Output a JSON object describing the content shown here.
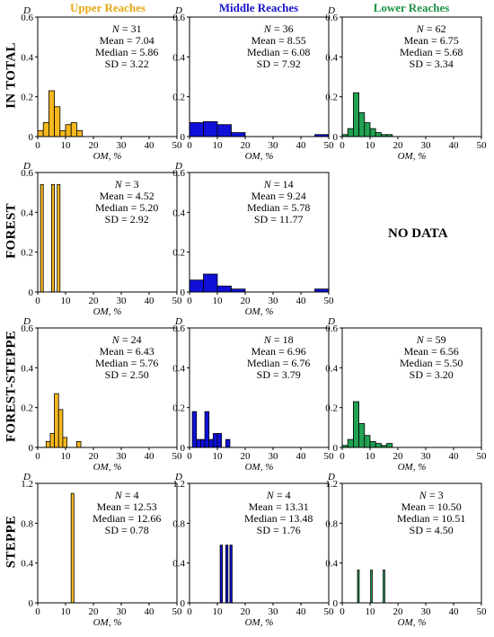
{
  "figure": {
    "col_titles": [
      {
        "text": "Upper Reaches",
        "color": "#E6A817"
      },
      {
        "text": "Middle Reaches",
        "color": "#1515C8"
      },
      {
        "text": "Lower Reaches",
        "color": "#1E9148"
      }
    ],
    "row_titles": [
      "IN TOTAL",
      "FOREST",
      "FOREST-STEPPE",
      "STEPPE"
    ],
    "no_data_label": "NO DATA",
    "colors": {
      "upper": "#F5B81F",
      "middle": "#1010D8",
      "lower": "#21A152",
      "outline": "#000000"
    }
  },
  "chart_data": [
    {
      "id": "total-upper",
      "row": 0,
      "col": 0,
      "type": "bar",
      "series": "upper",
      "xlabel": "OM, %",
      "ylabel": "D",
      "xlim": [
        0,
        50
      ],
      "ylim": [
        0,
        0.6
      ],
      "xticks": [
        0,
        10,
        20,
        30,
        40,
        50
      ],
      "yticks": [
        0,
        0.2,
        0.4,
        0.6
      ],
      "ytick_labels": [
        "0",
        "0.2",
        "0.4",
        "0.6"
      ],
      "bin_width": 2,
      "bins_start": [
        0,
        2,
        4,
        6,
        8,
        10,
        12,
        14
      ],
      "values": [
        0.03,
        0.07,
        0.23,
        0.15,
        0.03,
        0.06,
        0.07,
        0.03
      ],
      "stats": {
        "n": "N = 31",
        "mean": "Mean = 7.04",
        "median": "Median = 5.86",
        "sd": "SD = 3.22"
      }
    },
    {
      "id": "total-middle",
      "row": 0,
      "col": 1,
      "type": "bar",
      "series": "middle",
      "xlabel": "OM, %",
      "ylabel": "D",
      "xlim": [
        0,
        50
      ],
      "ylim": [
        0,
        0.6
      ],
      "xticks": [
        0,
        10,
        20,
        30,
        40,
        50
      ],
      "yticks": [
        0,
        0.2,
        0.4,
        0.6
      ],
      "ytick_labels": [
        "0",
        "0.2",
        "0.4",
        "0.6"
      ],
      "bin_width": 5,
      "bins_start": [
        0,
        5,
        10,
        15,
        20,
        25,
        30,
        35,
        40,
        45
      ],
      "values": [
        0.07,
        0.075,
        0.06,
        0.02,
        0.0,
        0.0,
        0.0,
        0.0,
        0.0,
        0.01
      ],
      "stats": {
        "n": "N = 36",
        "mean": "Mean = 8.55",
        "median": "Median = 6.08",
        "sd": "SD = 7.92"
      }
    },
    {
      "id": "total-lower",
      "row": 0,
      "col": 2,
      "type": "bar",
      "series": "lower",
      "xlabel": "OM, %",
      "ylabel": "D",
      "xlim": [
        0,
        50
      ],
      "ylim": [
        0,
        0.6
      ],
      "xticks": [
        0,
        10,
        20,
        30,
        40,
        50
      ],
      "yticks": [
        0,
        0.2,
        0.4,
        0.6
      ],
      "ytick_labels": [
        "0",
        "0.2",
        "0.4",
        "0.6"
      ],
      "bin_width": 2,
      "bins_start": [
        0,
        2,
        4,
        6,
        8,
        10,
        12,
        14,
        16
      ],
      "values": [
        0.01,
        0.04,
        0.22,
        0.12,
        0.07,
        0.04,
        0.02,
        0.01,
        0.01
      ],
      "stats": {
        "n": "N = 62",
        "mean": "Mean = 6.75",
        "median": "Median = 5.68",
        "sd": "SD = 3.34"
      }
    },
    {
      "id": "forest-upper",
      "row": 1,
      "col": 0,
      "type": "bar",
      "series": "upper",
      "xlabel": "OM, %",
      "ylabel": "D",
      "xlim": [
        0,
        50
      ],
      "ylim": [
        0,
        0.6
      ],
      "xticks": [
        0,
        10,
        20,
        30,
        40,
        50
      ],
      "yticks": [
        0,
        0.2,
        0.4,
        0.6
      ],
      "ytick_labels": [
        "0",
        "0.2",
        "0.4",
        "0.6"
      ],
      "bin_width": 1,
      "bins_start": [
        1,
        5,
        7
      ],
      "values": [
        0.54,
        0.54,
        0.54
      ],
      "stats": {
        "n": "N = 3",
        "mean": "Mean = 4.52",
        "median": "Median = 5.20",
        "sd": "SD = 2.92"
      }
    },
    {
      "id": "forest-middle",
      "row": 1,
      "col": 1,
      "type": "bar",
      "series": "middle",
      "xlabel": "OM, %",
      "ylabel": "D",
      "xlim": [
        0,
        50
      ],
      "ylim": [
        0,
        0.6
      ],
      "xticks": [
        0,
        10,
        20,
        30,
        40,
        50
      ],
      "yticks": [
        0,
        0.2,
        0.4,
        0.6
      ],
      "ytick_labels": [
        "0",
        "0.2",
        "0.4",
        "0.6"
      ],
      "bin_width": 5,
      "bins_start": [
        0,
        5,
        10,
        15,
        20,
        25,
        30,
        35,
        40,
        45
      ],
      "values": [
        0.06,
        0.09,
        0.03,
        0.015,
        0.0,
        0.0,
        0.0,
        0.0,
        0.0,
        0.015
      ],
      "stats": {
        "n": "N = 14",
        "mean": "Mean = 9.24",
        "median": "Median = 5.78",
        "sd": "SD = 11.77"
      }
    },
    {
      "id": "steppeF-upper",
      "row": 2,
      "col": 0,
      "type": "bar",
      "series": "upper",
      "xlabel": "OM, %",
      "ylabel": "D",
      "xlim": [
        0,
        50
      ],
      "ylim": [
        0,
        0.6
      ],
      "xticks": [
        0,
        10,
        20,
        30,
        40,
        50
      ],
      "yticks": [
        0,
        0.2,
        0.4,
        0.6
      ],
      "ytick_labels": [
        "0",
        "0.2",
        "0.4",
        "0.6"
      ],
      "bin_width": 1.5,
      "bins_start": [
        3,
        4.5,
        6,
        7.5,
        9,
        14
      ],
      "values": [
        0.03,
        0.07,
        0.27,
        0.19,
        0.05,
        0.03
      ],
      "stats": {
        "n": "N = 24",
        "mean": "Mean = 6.43",
        "median": "Median = 5.76",
        "sd": "SD = 2.50"
      }
    },
    {
      "id": "steppeF-middle",
      "row": 2,
      "col": 1,
      "type": "bar",
      "series": "middle",
      "xlabel": "OM, %",
      "ylabel": "D",
      "xlim": [
        0,
        50
      ],
      "ylim": [
        0,
        0.6
      ],
      "xticks": [
        0,
        10,
        20,
        30,
        40,
        50
      ],
      "yticks": [
        0,
        0.2,
        0.4,
        0.6
      ],
      "ytick_labels": [
        "0",
        "0.2",
        "0.4",
        "0.6"
      ],
      "bin_width": 1.5,
      "bins_start": [
        1,
        2.5,
        4,
        5.5,
        7,
        8.5,
        10,
        11.5,
        13
      ],
      "values": [
        0.18,
        0.04,
        0.04,
        0.18,
        0.04,
        0.07,
        0.07,
        0.0,
        0.04
      ],
      "stats": {
        "n": "N = 18",
        "mean": "Mean = 6.96",
        "median": "Median = 6.76",
        "sd": "SD = 3.79"
      }
    },
    {
      "id": "steppeF-lower",
      "row": 2,
      "col": 2,
      "type": "bar",
      "series": "lower",
      "xlabel": "OM, %",
      "ylabel": "D",
      "xlim": [
        0,
        50
      ],
      "ylim": [
        0,
        0.6
      ],
      "xticks": [
        0,
        10,
        20,
        30,
        40,
        50
      ],
      "yticks": [
        0,
        0.2,
        0.4,
        0.6
      ],
      "ytick_labels": [
        "0",
        "0.2",
        "0.4",
        "0.6"
      ],
      "bin_width": 2,
      "bins_start": [
        0,
        2,
        4,
        6,
        8,
        10,
        12,
        14,
        16
      ],
      "values": [
        0.01,
        0.04,
        0.23,
        0.12,
        0.06,
        0.03,
        0.02,
        0.01,
        0.02
      ],
      "stats": {
        "n": "N = 59",
        "mean": "Mean = 6.56",
        "median": "Median = 5.50",
        "sd": "SD = 3.20"
      }
    },
    {
      "id": "steppe-upper",
      "row": 3,
      "col": 0,
      "type": "bar",
      "series": "upper",
      "xlabel": "OM, %",
      "ylabel": "D",
      "xlim": [
        0,
        50
      ],
      "ylim": [
        0,
        1.2
      ],
      "xticks": [
        0,
        10,
        20,
        30,
        40,
        50
      ],
      "yticks": [
        0,
        0.4,
        0.8,
        1.2
      ],
      "ytick_labels": [
        "0",
        "0.4",
        "0.8",
        "1.2"
      ],
      "bin_width": 1,
      "bins_start": [
        12
      ],
      "values": [
        1.1
      ],
      "stats": {
        "n": "N = 4",
        "mean": "Mean = 12.53",
        "median": "Median = 12.66",
        "sd": "SD = 0.78"
      }
    },
    {
      "id": "steppe-middle",
      "row": 3,
      "col": 1,
      "type": "bar",
      "series": "middle",
      "xlabel": "OM, %",
      "ylabel": "D",
      "xlim": [
        0,
        50
      ],
      "ylim": [
        0,
        1.2
      ],
      "xticks": [
        0,
        10,
        20,
        30,
        40,
        50
      ],
      "yticks": [
        0,
        0.4,
        0.8,
        1.2
      ],
      "ytick_labels": [
        "0",
        "0.4",
        "0.8",
        "1.2"
      ],
      "bin_width": 0.8,
      "bins_start": [
        11,
        13,
        14.5
      ],
      "values": [
        0.58,
        0.58,
        0.58
      ],
      "stats": {
        "n": "N = 4",
        "mean": "Mean = 13.31",
        "median": "Median = 13.48",
        "sd": "SD = 1.76"
      }
    },
    {
      "id": "steppe-lower",
      "row": 3,
      "col": 2,
      "type": "bar",
      "series": "lower",
      "xlabel": "OM, %",
      "ylabel": "D",
      "xlim": [
        0,
        50
      ],
      "ylim": [
        0,
        1.2
      ],
      "xticks": [
        0,
        10,
        20,
        30,
        40,
        50
      ],
      "yticks": [
        0,
        0.4,
        0.8,
        1.2
      ],
      "ytick_labels": [
        "0",
        "0.4",
        "0.8",
        "1.2"
      ],
      "bin_width": 0.6,
      "bins_start": [
        5.5,
        10.2,
        14.7
      ],
      "values": [
        0.33,
        0.33,
        0.33
      ],
      "stats": {
        "n": "N = 3",
        "mean": "Mean = 10.50",
        "median": "Median = 10.51",
        "sd": "SD = 4.50"
      }
    }
  ]
}
